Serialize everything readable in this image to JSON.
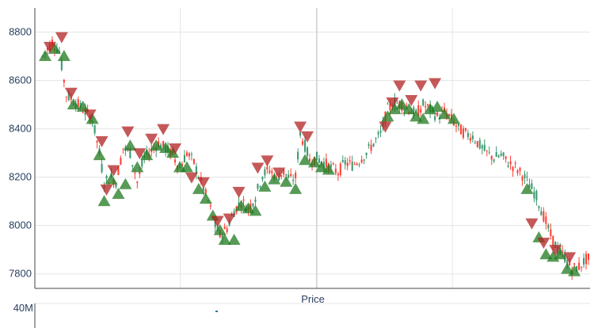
{
  "chart_data": {
    "type": "candlestick",
    "title": "",
    "xlabel": "Price",
    "ylabel": "",
    "ylim": [
      7740,
      8900
    ],
    "y_ticks": [
      7800,
      8000,
      8200,
      8400,
      8600,
      8800
    ],
    "y_tick_labels": [
      "7800",
      "8000",
      "8200",
      "8400",
      "8600",
      "8800"
    ],
    "volume_axis_label": "40M",
    "grid": true,
    "colors": {
      "increasing": "#3d9970",
      "decreasing": "#ff4136",
      "buy_marker": "#1f7a1f",
      "sell_marker": "#b22222",
      "grid": "#e5e5e5",
      "axis": "#444444"
    },
    "trend_path": [
      [
        0,
        8700
      ],
      [
        4,
        8760
      ],
      [
        7,
        8720
      ],
      [
        10,
        8540
      ],
      [
        14,
        8510
      ],
      [
        18,
        8470
      ],
      [
        21,
        8440
      ],
      [
        24,
        8300
      ],
      [
        26,
        8180
      ],
      [
        29,
        8200
      ],
      [
        31,
        8180
      ],
      [
        34,
        8320
      ],
      [
        37,
        8300
      ],
      [
        40,
        8180
      ],
      [
        43,
        8280
      ],
      [
        46,
        8310
      ],
      [
        49,
        8340
      ],
      [
        52,
        8320
      ],
      [
        55,
        8290
      ],
      [
        58,
        8240
      ],
      [
        61,
        8300
      ],
      [
        64,
        8260
      ],
      [
        67,
        8180
      ],
      [
        70,
        8100
      ],
      [
        73,
        8000
      ],
      [
        75,
        7960
      ],
      [
        78,
        7990
      ],
      [
        81,
        8060
      ],
      [
        84,
        8100
      ],
      [
        87,
        8070
      ],
      [
        90,
        8120
      ],
      [
        93,
        8210
      ],
      [
        96,
        8230
      ],
      [
        99,
        8200
      ],
      [
        102,
        8220
      ],
      [
        105,
        8190
      ],
      [
        107,
        8200
      ],
      [
        109,
        8380
      ],
      [
        111,
        8330
      ],
      [
        113,
        8270
      ],
      [
        116,
        8280
      ],
      [
        119,
        8260
      ],
      [
        122,
        8240
      ],
      [
        125,
        8220
      ],
      [
        128,
        8260
      ],
      [
        131,
        8250
      ],
      [
        134,
        8270
      ],
      [
        137,
        8300
      ],
      [
        140,
        8340
      ],
      [
        143,
        8380
      ],
      [
        146,
        8480
      ],
      [
        149,
        8510
      ],
      [
        152,
        8500
      ],
      [
        155,
        8480
      ],
      [
        158,
        8460
      ],
      [
        161,
        8500
      ],
      [
        164,
        8480
      ],
      [
        167,
        8450
      ],
      [
        170,
        8470
      ],
      [
        173,
        8440
      ],
      [
        176,
        8400
      ],
      [
        179,
        8380
      ],
      [
        182,
        8370
      ],
      [
        185,
        8330
      ],
      [
        188,
        8300
      ],
      [
        191,
        8280
      ],
      [
        194,
        8290
      ],
      [
        197,
        8260
      ],
      [
        200,
        8240
      ],
      [
        203,
        8210
      ],
      [
        206,
        8170
      ],
      [
        209,
        8120
      ],
      [
        212,
        8040
      ],
      [
        215,
        7960
      ],
      [
        218,
        7900
      ],
      [
        221,
        7870
      ],
      [
        224,
        7820
      ],
      [
        227,
        7830
      ],
      [
        230,
        7860
      ]
    ],
    "buy_signals": [
      [
        1,
        8700
      ],
      [
        5,
        8730
      ],
      [
        9,
        8700
      ],
      [
        13,
        8500
      ],
      [
        17,
        8490
      ],
      [
        21,
        8440
      ],
      [
        24,
        8290
      ],
      [
        26,
        8100
      ],
      [
        29,
        8190
      ],
      [
        32,
        8130
      ],
      [
        35,
        8170
      ],
      [
        37,
        8330
      ],
      [
        40,
        8240
      ],
      [
        44,
        8290
      ],
      [
        48,
        8330
      ],
      [
        52,
        8320
      ],
      [
        55,
        8300
      ],
      [
        58,
        8240
      ],
      [
        61,
        8240
      ],
      [
        66,
        8150
      ],
      [
        69,
        8110
      ],
      [
        72,
        8040
      ],
      [
        75,
        7980
      ],
      [
        77,
        7940
      ],
      [
        81,
        7940
      ],
      [
        84,
        8080
      ],
      [
        87,
        8070
      ],
      [
        90,
        8060
      ],
      [
        94,
        8160
      ],
      [
        98,
        8190
      ],
      [
        103,
        8180
      ],
      [
        107,
        8150
      ],
      [
        111,
        8270
      ],
      [
        115,
        8260
      ],
      [
        118,
        8240
      ],
      [
        121,
        8230
      ],
      [
        146,
        8450
      ],
      [
        149,
        8480
      ],
      [
        152,
        8500
      ],
      [
        155,
        8480
      ],
      [
        158,
        8450
      ],
      [
        161,
        8440
      ],
      [
        164,
        8480
      ],
      [
        167,
        8490
      ],
      [
        170,
        8460
      ],
      [
        174,
        8440
      ],
      [
        205,
        8150
      ],
      [
        210,
        7950
      ],
      [
        213,
        7880
      ],
      [
        216,
        7870
      ],
      [
        219,
        7880
      ],
      [
        222,
        7820
      ],
      [
        225,
        7810
      ]
    ],
    "sell_signals": [
      [
        3,
        8740
      ],
      [
        8,
        8780
      ],
      [
        12,
        8550
      ],
      [
        20,
        8460
      ],
      [
        25,
        8350
      ],
      [
        27,
        8150
      ],
      [
        30,
        8230
      ],
      [
        36,
        8390
      ],
      [
        41,
        8300
      ],
      [
        46,
        8360
      ],
      [
        51,
        8400
      ],
      [
        56,
        8320
      ],
      [
        63,
        8200
      ],
      [
        68,
        8180
      ],
      [
        74,
        8020
      ],
      [
        79,
        8030
      ],
      [
        83,
        8140
      ],
      [
        91,
        8240
      ],
      [
        95,
        8270
      ],
      [
        100,
        8220
      ],
      [
        109,
        8410
      ],
      [
        112,
        8370
      ],
      [
        145,
        8410
      ],
      [
        148,
        8510
      ],
      [
        151,
        8580
      ],
      [
        156,
        8520
      ],
      [
        160,
        8580
      ],
      [
        166,
        8590
      ],
      [
        207,
        8010
      ],
      [
        212,
        7930
      ],
      [
        217,
        7900
      ],
      [
        223,
        7870
      ]
    ]
  }
}
